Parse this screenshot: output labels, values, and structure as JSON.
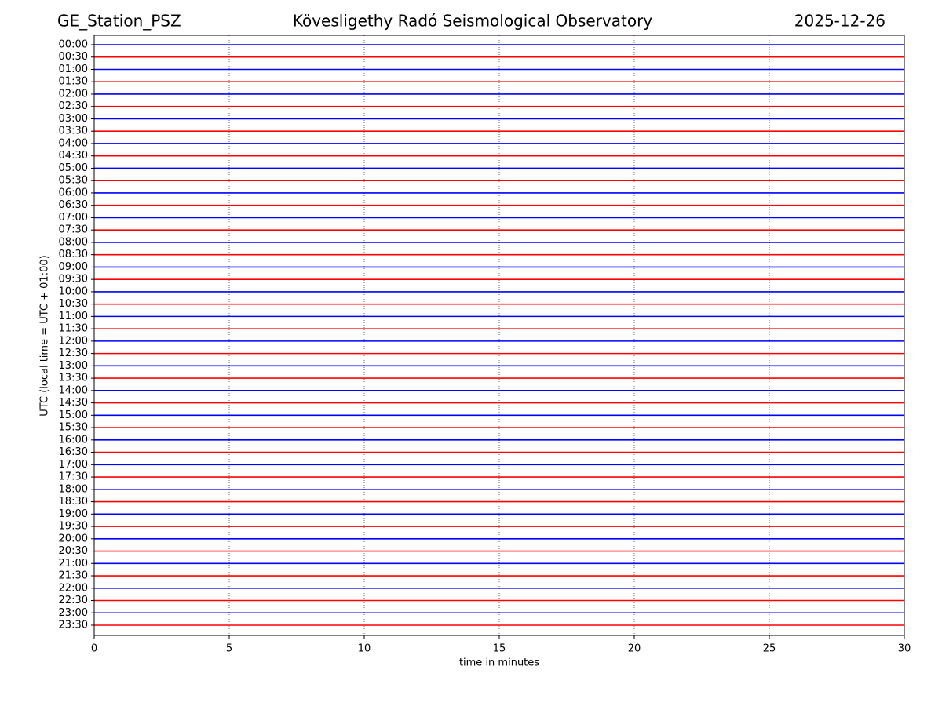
{
  "chart_data": {
    "type": "helicorder",
    "title": "Kövesligethy Radó Seismological Observatory",
    "station": "GE_Station_PSZ",
    "date": "2025-12-26",
    "ylabel": "UTC (local time = UTC + 01:00)",
    "xlabel": "time in minutes",
    "xlim": [
      0,
      30
    ],
    "xticks": [
      0,
      5,
      10,
      15,
      20,
      25,
      30
    ],
    "grid": true,
    "colors": [
      "#0000ff",
      "#ff0000"
    ],
    "categories": [
      "00:00",
      "00:30",
      "01:00",
      "01:30",
      "02:00",
      "02:30",
      "03:00",
      "03:30",
      "04:00",
      "04:30",
      "05:00",
      "05:30",
      "06:00",
      "06:30",
      "07:00",
      "07:30",
      "08:00",
      "08:30",
      "09:00",
      "09:30",
      "10:00",
      "10:30",
      "11:00",
      "11:30",
      "12:00",
      "12:30",
      "13:00",
      "13:30",
      "14:00",
      "14:30",
      "15:00",
      "15:30",
      "16:00",
      "16:30",
      "17:00",
      "17:30",
      "18:00",
      "18:30",
      "19:00",
      "19:30",
      "20:00",
      "20:30",
      "21:00",
      "21:30",
      "22:00",
      "22:30",
      "23:00",
      "23:30"
    ]
  }
}
